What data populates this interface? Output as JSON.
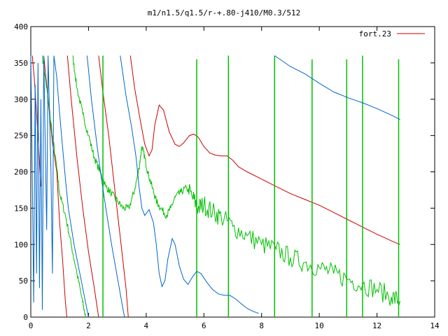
{
  "chart_data": {
    "type": "line",
    "title": "m1/n1.5/q1.5/r-+.80-j410/M0.3/512",
    "xlabel": "",
    "ylabel": "",
    "xlim": [
      0,
      14
    ],
    "ylim": [
      0,
      400
    ],
    "x_ticks": [
      "0",
      "2",
      "4",
      "6",
      "8",
      "10",
      "12",
      "14"
    ],
    "y_ticks": [
      "0",
      "50",
      "100",
      "150",
      "200",
      "250",
      "300",
      "350",
      "400"
    ],
    "grid": false,
    "legend_position": "top-right",
    "series": [
      {
        "name": "fort.23",
        "color": "#cc0000",
        "segments": [
          [
            [
              0.05,
              360
            ],
            [
              0.12,
              330
            ],
            [
              0.2,
              280
            ],
            [
              0.28,
              230
            ],
            [
              0.35,
              180
            ]
          ],
          [
            [
              0.45,
              360
            ],
            [
              0.6,
              300
            ],
            [
              0.75,
              240
            ],
            [
              0.9,
              200
            ],
            [
              1.0,
              130
            ],
            [
              1.1,
              80
            ],
            [
              1.2,
              20
            ],
            [
              1.25,
              0
            ]
          ],
          [
            [
              1.27,
              360
            ],
            [
              1.4,
              300
            ],
            [
              1.6,
              220
            ],
            [
              1.8,
              150
            ],
            [
              2.0,
              90
            ],
            [
              2.2,
              40
            ],
            [
              2.35,
              0
            ]
          ],
          [
            [
              2.35,
              360
            ],
            [
              2.5,
              310
            ],
            [
              2.7,
              250
            ],
            [
              2.9,
              180
            ],
            [
              3.1,
              110
            ],
            [
              3.3,
              40
            ],
            [
              3.38,
              0
            ]
          ],
          [
            [
              3.45,
              360
            ],
            [
              3.6,
              315
            ],
            [
              3.8,
              270
            ],
            [
              3.95,
              238
            ],
            [
              4.1,
              222
            ],
            [
              4.2,
              230
            ],
            [
              4.3,
              265
            ],
            [
              4.45,
              292
            ],
            [
              4.6,
              285
            ],
            [
              4.8,
              255
            ],
            [
              5.0,
              238
            ],
            [
              5.15,
              235
            ],
            [
              5.3,
              240
            ],
            [
              5.5,
              250
            ],
            [
              5.65,
              252
            ],
            [
              5.8,
              248
            ],
            [
              6.0,
              235
            ],
            [
              6.2,
              226
            ],
            [
              6.4,
              223
            ],
            [
              6.6,
              222
            ],
            [
              6.8,
              222
            ],
            [
              7.0,
              216
            ],
            [
              7.2,
              207
            ],
            [
              7.5,
              200
            ],
            [
              8.0,
              190
            ],
            [
              8.5,
              180
            ],
            [
              9.0,
              170
            ],
            [
              9.5,
              162
            ],
            [
              10.0,
              154
            ],
            [
              10.5,
              144
            ],
            [
              11.0,
              134
            ],
            [
              11.5,
              124
            ],
            [
              12.0,
              114
            ],
            [
              12.5,
              105
            ],
            [
              12.8,
              100
            ]
          ]
        ]
      },
      {
        "name": "",
        "color": "#00c000",
        "segments": [
          [
            [
              0.4,
              360
            ],
            [
              0.6,
              300
            ],
            [
              0.75,
              250
            ],
            [
              0.9,
              205
            ],
            [
              1.0,
              170
            ],
            [
              1.2,
              140
            ],
            [
              1.4,
              100
            ],
            [
              1.6,
              60
            ],
            [
              1.8,
              20
            ],
            [
              1.9,
              0
            ]
          ],
          [
            [
              1.45,
              360
            ],
            [
              1.6,
              315
            ],
            [
              1.8,
              280
            ],
            [
              2.0,
              250
            ],
            [
              2.2,
              220
            ],
            [
              2.4,
              200
            ],
            [
              2.6,
              180
            ],
            [
              2.8,
              170
            ],
            [
              3.0,
              160
            ],
            [
              3.2,
              150
            ],
            [
              3.4,
              150
            ],
            [
              3.6,
              175
            ],
            [
              3.75,
              205
            ],
            [
              3.85,
              235
            ],
            [
              3.95,
              220
            ],
            [
              4.05,
              200
            ],
            [
              4.2,
              180
            ],
            [
              4.35,
              160
            ],
            [
              4.5,
              150
            ],
            [
              4.7,
              140
            ],
            [
              4.85,
              150
            ],
            [
              5.0,
              165
            ],
            [
              5.2,
              172
            ],
            [
              5.4,
              178
            ],
            [
              5.6,
              165
            ],
            [
              5.8,
              150
            ],
            [
              6.0,
              155
            ],
            [
              6.3,
              145
            ],
            [
              6.6,
              138
            ],
            [
              7.0,
              125
            ],
            [
              7.5,
              112
            ],
            [
              8.0,
              100
            ],
            [
              8.5,
              93
            ],
            [
              9.0,
              82
            ],
            [
              9.5,
              75
            ],
            [
              10.0,
              68
            ],
            [
              10.5,
              60
            ],
            [
              11.0,
              52
            ],
            [
              11.5,
              45
            ],
            [
              12.0,
              38
            ],
            [
              12.5,
              28
            ],
            [
              12.8,
              22
            ]
          ]
        ],
        "spikes": [
          {
            "x": 2.5,
            "from": 0,
            "to": 360
          },
          {
            "x": 5.75,
            "from": 0,
            "to": 355
          },
          {
            "x": 6.85,
            "from": 0,
            "to": 360
          },
          {
            "x": 8.45,
            "from": 0,
            "to": 360
          },
          {
            "x": 9.75,
            "from": 0,
            "to": 355
          },
          {
            "x": 10.95,
            "from": 0,
            "to": 355
          },
          {
            "x": 11.5,
            "from": 0,
            "to": 360
          },
          {
            "x": 12.75,
            "from": 0,
            "to": 355
          }
        ],
        "noise_region": [
          5.5,
          12.8
        ]
      },
      {
        "name": "",
        "color": "#0066cc",
        "segments": [
          [
            [
              0.0,
              360
            ],
            [
              0.05,
              200
            ],
            [
              0.1,
              20
            ],
            [
              0.15,
              320
            ],
            [
              0.2,
              60
            ],
            [
              0.25,
              350
            ],
            [
              0.3,
              40
            ],
            [
              0.35,
              300
            ],
            [
              0.4,
              10
            ],
            [
              0.45,
              360
            ],
            [
              0.55,
              120
            ],
            [
              0.6,
              360
            ],
            [
              0.7,
              200
            ],
            [
              0.75,
              60
            ],
            [
              0.8,
              360
            ]
          ],
          [
            [
              0.8,
              360
            ],
            [
              0.9,
              330
            ],
            [
              1.0,
              280
            ],
            [
              1.1,
              235
            ],
            [
              1.2,
              190
            ],
            [
              1.3,
              150
            ],
            [
              1.5,
              100
            ],
            [
              1.7,
              60
            ],
            [
              1.9,
              20
            ],
            [
              2.0,
              0
            ]
          ],
          [
            [
              1.95,
              360
            ],
            [
              2.1,
              300
            ],
            [
              2.3,
              235
            ],
            [
              2.45,
              190
            ],
            [
              2.6,
              150
            ],
            [
              2.8,
              100
            ],
            [
              3.0,
              55
            ],
            [
              3.2,
              10
            ],
            [
              3.25,
              0
            ]
          ],
          [
            [
              3.1,
              360
            ],
            [
              3.3,
              305
            ],
            [
              3.5,
              260
            ],
            [
              3.65,
              220
            ],
            [
              3.75,
              180
            ],
            [
              3.85,
              150
            ],
            [
              3.95,
              140
            ],
            [
              4.1,
              148
            ],
            [
              4.25,
              130
            ],
            [
              4.35,
              100
            ],
            [
              4.45,
              60
            ],
            [
              4.55,
              42
            ],
            [
              4.65,
              50
            ],
            [
              4.75,
              80
            ],
            [
              4.9,
              108
            ],
            [
              5.0,
              100
            ],
            [
              5.15,
              70
            ],
            [
              5.3,
              52
            ],
            [
              5.45,
              45
            ],
            [
              5.6,
              55
            ],
            [
              5.75,
              63
            ],
            [
              5.9,
              60
            ],
            [
              6.1,
              48
            ],
            [
              6.3,
              38
            ],
            [
              6.5,
              32
            ],
            [
              6.7,
              30
            ],
            [
              6.9,
              30
            ],
            [
              7.1,
              25
            ],
            [
              7.3,
              18
            ],
            [
              7.5,
              12
            ],
            [
              7.7,
              8
            ],
            [
              7.9,
              5
            ]
          ],
          [
            [
              8.45,
              360
            ],
            [
              9.0,
              345
            ],
            [
              9.5,
              335
            ],
            [
              10.0,
              322
            ],
            [
              10.5,
              310
            ],
            [
              11.0,
              302
            ],
            [
              11.5,
              295
            ],
            [
              12.0,
              287
            ],
            [
              12.5,
              278
            ],
            [
              12.8,
              272
            ]
          ]
        ]
      }
    ]
  }
}
